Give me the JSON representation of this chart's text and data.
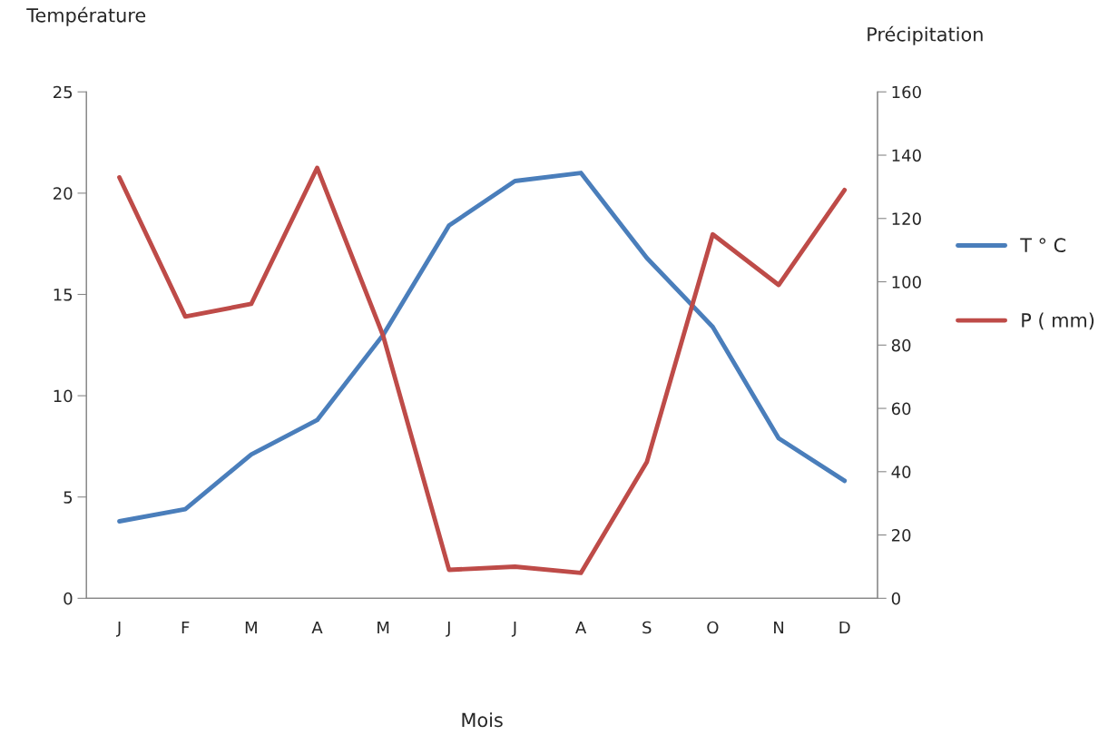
{
  "chart_data": {
    "type": "line",
    "xlabel": "Mois",
    "ylabel": "Température",
    "y2label": "Précipitation",
    "categories": [
      "J",
      "F",
      "M",
      "A",
      "M",
      "J",
      "J",
      "A",
      "S",
      "O",
      "N",
      "D"
    ],
    "series": [
      {
        "name": "T ° C",
        "color": "#4a7ebb",
        "values": [
          3.8,
          4.4,
          7.1,
          8.8,
          13.0,
          18.4,
          20.6,
          21.0,
          16.8,
          13.4,
          7.9,
          5.8
        ]
      },
      {
        "name": "P ( mm)",
        "color": "#be4b48",
        "axis": "y2",
        "values": [
          133,
          89,
          93,
          136,
          83,
          9,
          10,
          8,
          43,
          115,
          99,
          129
        ]
      }
    ],
    "ylim": [
      0,
      25
    ],
    "yticks": [
      0,
      5,
      10,
      15,
      20,
      25
    ],
    "y2lim": [
      0,
      160
    ],
    "y2ticks": [
      0,
      20,
      40,
      60,
      80,
      100,
      120,
      140,
      160
    ],
    "grid": false,
    "legend": "right",
    "marker": "none",
    "line_style": "solid"
  }
}
